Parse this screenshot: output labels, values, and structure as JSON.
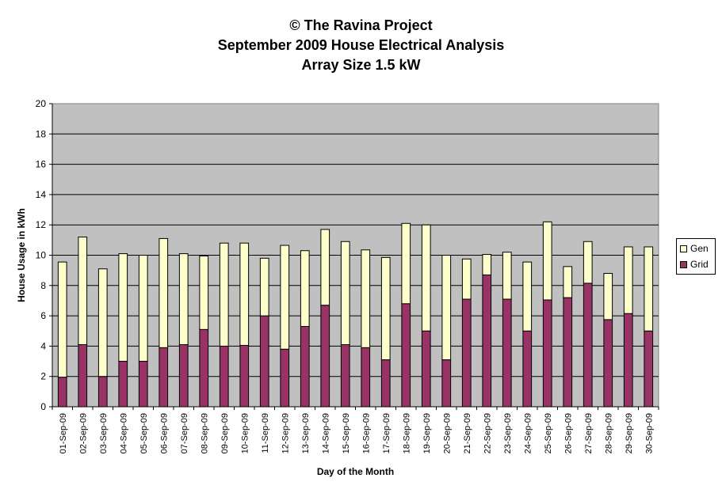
{
  "chart_data": {
    "type": "bar",
    "stacked": true,
    "title": [
      "© The Ravina Project",
      "September 2009 House Electrical Analysis",
      "Array Size 1.5 kW"
    ],
    "xlabel": "Day of the Month",
    "ylabel": "House Usage in kWh",
    "ylim": [
      0,
      20
    ],
    "yticks": [
      0,
      2,
      4,
      6,
      8,
      10,
      12,
      14,
      16,
      18,
      20
    ],
    "grid": true,
    "legend_position": "right",
    "categories": [
      "01-Sep-09",
      "02-Sep-09",
      "03-Sep-09",
      "04-Sep-09",
      "05-Sep-09",
      "06-Sep-09",
      "07-Sep-09",
      "08-Sep-09",
      "09-Sep-09",
      "10-Sep-09",
      "11-Sep-09",
      "12-Sep-09",
      "13-Sep-09",
      "14-Sep-09",
      "15-Sep-09",
      "16-Sep-09",
      "17-Sep-09",
      "18-Sep-09",
      "19-Sep-09",
      "20-Sep-09",
      "21-Sep-09",
      "22-Sep-09",
      "23-Sep-09",
      "24-Sep-09",
      "25-Sep-09",
      "26-Sep-09",
      "27-Sep-09",
      "28-Sep-09",
      "29-Sep-09",
      "30-Sep-09"
    ],
    "series": [
      {
        "name": "Grid",
        "color": "#993366",
        "values": [
          1.95,
          4.1,
          2.0,
          3.0,
          3.0,
          3.9,
          4.1,
          5.1,
          4.0,
          4.05,
          6.0,
          3.8,
          5.3,
          6.7,
          4.1,
          3.9,
          3.1,
          6.8,
          5.0,
          3.1,
          7.1,
          8.7,
          7.1,
          5.0,
          7.05,
          7.2,
          8.15,
          5.75,
          6.15,
          5.0
        ]
      },
      {
        "name": "Gen",
        "color": "#ffffcc",
        "values": [
          7.6,
          7.1,
          7.1,
          7.1,
          7.0,
          7.2,
          6.0,
          4.85,
          6.8,
          6.75,
          3.8,
          6.85,
          5.0,
          5.0,
          6.8,
          6.45,
          6.75,
          5.3,
          7.0,
          6.9,
          2.65,
          1.35,
          3.1,
          4.55,
          5.15,
          2.05,
          2.75,
          3.05,
          4.4,
          5.55
        ]
      }
    ],
    "plot_background": "#c0c0c0"
  }
}
